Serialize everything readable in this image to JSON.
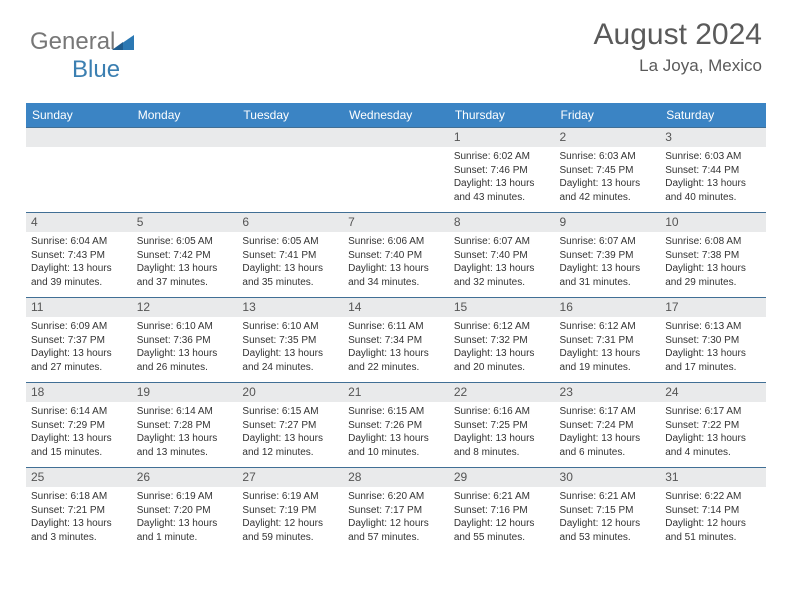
{
  "logo": {
    "general": "General",
    "blue": "Blue"
  },
  "title": "August 2024",
  "location": "La Joya, Mexico",
  "colors": {
    "header_bg": "#3b84c4",
    "border": "#416f95",
    "daybar": "#e9eaeb",
    "text": "#333333",
    "logo_gray": "#777777",
    "logo_blue": "#3b7fb1"
  },
  "weekdays": [
    "Sunday",
    "Monday",
    "Tuesday",
    "Wednesday",
    "Thursday",
    "Friday",
    "Saturday"
  ],
  "cells": [
    {
      "blank": true
    },
    {
      "blank": true
    },
    {
      "blank": true
    },
    {
      "blank": true
    },
    {
      "d": "1",
      "sr": "6:02 AM",
      "ss": "7:46 PM",
      "dl": "13 hours and 43 minutes."
    },
    {
      "d": "2",
      "sr": "6:03 AM",
      "ss": "7:45 PM",
      "dl": "13 hours and 42 minutes."
    },
    {
      "d": "3",
      "sr": "6:03 AM",
      "ss": "7:44 PM",
      "dl": "13 hours and 40 minutes."
    },
    {
      "d": "4",
      "sr": "6:04 AM",
      "ss": "7:43 PM",
      "dl": "13 hours and 39 minutes."
    },
    {
      "d": "5",
      "sr": "6:05 AM",
      "ss": "7:42 PM",
      "dl": "13 hours and 37 minutes."
    },
    {
      "d": "6",
      "sr": "6:05 AM",
      "ss": "7:41 PM",
      "dl": "13 hours and 35 minutes."
    },
    {
      "d": "7",
      "sr": "6:06 AM",
      "ss": "7:40 PM",
      "dl": "13 hours and 34 minutes."
    },
    {
      "d": "8",
      "sr": "6:07 AM",
      "ss": "7:40 PM",
      "dl": "13 hours and 32 minutes."
    },
    {
      "d": "9",
      "sr": "6:07 AM",
      "ss": "7:39 PM",
      "dl": "13 hours and 31 minutes."
    },
    {
      "d": "10",
      "sr": "6:08 AM",
      "ss": "7:38 PM",
      "dl": "13 hours and 29 minutes."
    },
    {
      "d": "11",
      "sr": "6:09 AM",
      "ss": "7:37 PM",
      "dl": "13 hours and 27 minutes."
    },
    {
      "d": "12",
      "sr": "6:10 AM",
      "ss": "7:36 PM",
      "dl": "13 hours and 26 minutes."
    },
    {
      "d": "13",
      "sr": "6:10 AM",
      "ss": "7:35 PM",
      "dl": "13 hours and 24 minutes."
    },
    {
      "d": "14",
      "sr": "6:11 AM",
      "ss": "7:34 PM",
      "dl": "13 hours and 22 minutes."
    },
    {
      "d": "15",
      "sr": "6:12 AM",
      "ss": "7:32 PM",
      "dl": "13 hours and 20 minutes."
    },
    {
      "d": "16",
      "sr": "6:12 AM",
      "ss": "7:31 PM",
      "dl": "13 hours and 19 minutes."
    },
    {
      "d": "17",
      "sr": "6:13 AM",
      "ss": "7:30 PM",
      "dl": "13 hours and 17 minutes."
    },
    {
      "d": "18",
      "sr": "6:14 AM",
      "ss": "7:29 PM",
      "dl": "13 hours and 15 minutes."
    },
    {
      "d": "19",
      "sr": "6:14 AM",
      "ss": "7:28 PM",
      "dl": "13 hours and 13 minutes."
    },
    {
      "d": "20",
      "sr": "6:15 AM",
      "ss": "7:27 PM",
      "dl": "13 hours and 12 minutes."
    },
    {
      "d": "21",
      "sr": "6:15 AM",
      "ss": "7:26 PM",
      "dl": "13 hours and 10 minutes."
    },
    {
      "d": "22",
      "sr": "6:16 AM",
      "ss": "7:25 PM",
      "dl": "13 hours and 8 minutes."
    },
    {
      "d": "23",
      "sr": "6:17 AM",
      "ss": "7:24 PM",
      "dl": "13 hours and 6 minutes."
    },
    {
      "d": "24",
      "sr": "6:17 AM",
      "ss": "7:22 PM",
      "dl": "13 hours and 4 minutes."
    },
    {
      "d": "25",
      "sr": "6:18 AM",
      "ss": "7:21 PM",
      "dl": "13 hours and 3 minutes."
    },
    {
      "d": "26",
      "sr": "6:19 AM",
      "ss": "7:20 PM",
      "dl": "13 hours and 1 minute."
    },
    {
      "d": "27",
      "sr": "6:19 AM",
      "ss": "7:19 PM",
      "dl": "12 hours and 59 minutes."
    },
    {
      "d": "28",
      "sr": "6:20 AM",
      "ss": "7:17 PM",
      "dl": "12 hours and 57 minutes."
    },
    {
      "d": "29",
      "sr": "6:21 AM",
      "ss": "7:16 PM",
      "dl": "12 hours and 55 minutes."
    },
    {
      "d": "30",
      "sr": "6:21 AM",
      "ss": "7:15 PM",
      "dl": "12 hours and 53 minutes."
    },
    {
      "d": "31",
      "sr": "6:22 AM",
      "ss": "7:14 PM",
      "dl": "12 hours and 51 minutes."
    }
  ],
  "labels": {
    "sunrise": "Sunrise: ",
    "sunset": "Sunset: ",
    "daylight": "Daylight: "
  }
}
